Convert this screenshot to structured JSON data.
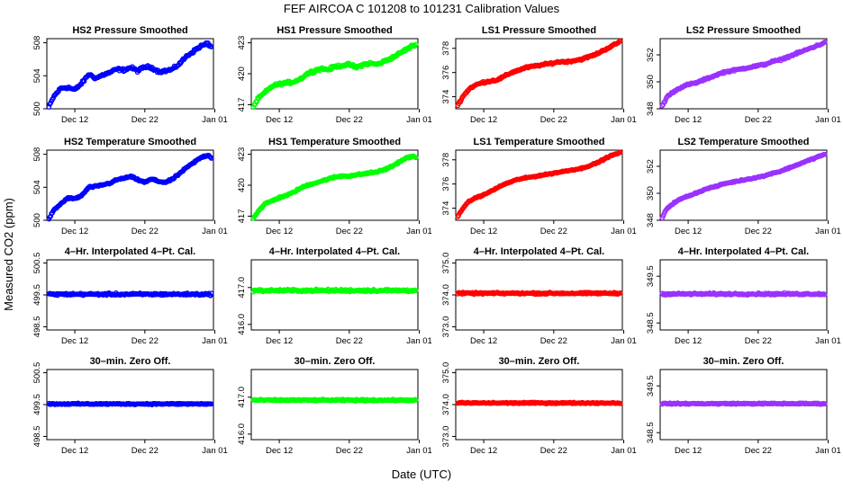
{
  "figure": {
    "title": "FEF    AIRCOA C    101208 to 101231    Calibration Values",
    "xlabel": "Date (UTC)",
    "ylabel": "Measured CO2 (ppm)",
    "x_tick_labels": [
      "Dec 12",
      "Dec 22",
      "Jan 01"
    ]
  },
  "chart_data": [
    {
      "type": "scatter",
      "row": 0,
      "col": 0,
      "title": "HS2 Pressure Smoothed",
      "color": "#0000ff",
      "xlim": [
        8.0,
        31.8
      ],
      "x_ticks": [
        12,
        22,
        32
      ],
      "x_tick_labels": [
        "Dec 12",
        "Dec 22",
        "Jan 01"
      ],
      "ylim": [
        500,
        508.5
      ],
      "y_ticks": [
        500,
        504,
        508
      ],
      "y_tick_labels": [
        "500",
        "504",
        "508"
      ],
      "knots_x": [
        8.3,
        9,
        10,
        11,
        12,
        13,
        14,
        15,
        16,
        17,
        18,
        19,
        20,
        21,
        22,
        23,
        24,
        25,
        26,
        27,
        28,
        29,
        30,
        31,
        31.5
      ],
      "knots_y": [
        500.2,
        501.5,
        502.5,
        502.6,
        502.3,
        503.1,
        504.2,
        503.7,
        504.1,
        504.4,
        504.8,
        504.7,
        505.0,
        504.6,
        505.1,
        505.0,
        504.5,
        504.6,
        504.8,
        505.5,
        506.4,
        507.0,
        507.6,
        507.9,
        507.5
      ],
      "noise": 0.25
    },
    {
      "type": "scatter",
      "row": 0,
      "col": 1,
      "title": "HS1 Pressure Smoothed",
      "color": "#00ff00",
      "xlim": [
        8.0,
        31.8
      ],
      "x_ticks": [
        12,
        22,
        32
      ],
      "x_tick_labels": [
        "Dec 12",
        "Dec 22",
        "Jan 01"
      ],
      "ylim": [
        416.6,
        423.4
      ],
      "y_ticks": [
        417,
        420,
        423
      ],
      "y_tick_labels": [
        "417",
        "420",
        "423"
      ],
      "knots_x": [
        8.3,
        9,
        10,
        11,
        12,
        13,
        14,
        15,
        16,
        17,
        18,
        19,
        20,
        21,
        22,
        23,
        24,
        25,
        26,
        27,
        28,
        29,
        30,
        31,
        31.5
      ],
      "knots_y": [
        416.8,
        417.6,
        418.2,
        418.8,
        419.0,
        419.1,
        419.2,
        419.5,
        420.0,
        420.3,
        420.5,
        420.4,
        420.7,
        420.8,
        420.9,
        420.6,
        420.9,
        421.0,
        420.9,
        421.2,
        421.5,
        421.9,
        422.3,
        422.7,
        422.8
      ],
      "noise": 0.2
    },
    {
      "type": "scatter",
      "row": 0,
      "col": 2,
      "title": "LS1 Pressure Smoothed",
      "color": "#ff0000",
      "xlim": [
        8.0,
        31.8
      ],
      "x_ticks": [
        12,
        22,
        32
      ],
      "x_tick_labels": [
        "Dec 12",
        "Dec 22",
        "Jan 01"
      ],
      "ylim": [
        373,
        378.8
      ],
      "y_ticks": [
        374,
        376,
        378
      ],
      "y_tick_labels": [
        "374",
        "376",
        "378"
      ],
      "knots_x": [
        8.3,
        9,
        10,
        11,
        12,
        13,
        14,
        15,
        16,
        17,
        18,
        19,
        20,
        21,
        22,
        23,
        24,
        25,
        26,
        27,
        28,
        29,
        30,
        31,
        31.5
      ],
      "knots_y": [
        373.3,
        374.0,
        374.7,
        375.0,
        375.2,
        375.3,
        375.4,
        375.7,
        376.0,
        376.2,
        376.4,
        376.5,
        376.6,
        376.7,
        376.8,
        376.9,
        376.9,
        377.0,
        377.1,
        377.3,
        377.5,
        377.8,
        378.1,
        378.4,
        378.6
      ],
      "noise": 0.12
    },
    {
      "type": "scatter",
      "row": 0,
      "col": 3,
      "title": "LS2 Pressure Smoothed",
      "color": "#9a32ff",
      "xlim": [
        8.0,
        31.8
      ],
      "x_ticks": [
        12,
        22,
        32
      ],
      "x_tick_labels": [
        "Dec 12",
        "Dec 22",
        "Jan 01"
      ],
      "ylim": [
        348,
        353.2
      ],
      "y_ticks": [
        348,
        350,
        352
      ],
      "y_tick_labels": [
        "348",
        "350",
        "352"
      ],
      "knots_x": [
        8.3,
        9,
        10,
        11,
        12,
        13,
        14,
        15,
        16,
        17,
        18,
        19,
        20,
        21,
        22,
        23,
        24,
        25,
        26,
        27,
        28,
        29,
        30,
        31,
        31.5
      ],
      "knots_y": [
        348.2,
        348.9,
        349.3,
        349.6,
        349.8,
        349.9,
        350.1,
        350.3,
        350.5,
        350.7,
        350.8,
        350.9,
        351.0,
        351.1,
        351.2,
        351.3,
        351.5,
        351.6,
        351.8,
        352.0,
        352.2,
        352.4,
        352.6,
        352.8,
        352.9
      ],
      "noise": 0.1
    },
    {
      "type": "scatter",
      "row": 1,
      "col": 0,
      "title": "HS2 Temperature Smoothed",
      "color": "#0000ff",
      "xlim": [
        8.0,
        31.8
      ],
      "x_ticks": [
        12,
        22,
        32
      ],
      "x_tick_labels": [
        "Dec 12",
        "Dec 22",
        "Jan 01"
      ],
      "ylim": [
        500,
        508.5
      ],
      "y_ticks": [
        500,
        504,
        508
      ],
      "y_tick_labels": [
        "500",
        "504",
        "508"
      ],
      "knots_x": [
        8.3,
        9,
        10,
        11,
        12,
        13,
        14,
        15,
        16,
        17,
        18,
        19,
        20,
        21,
        22,
        23,
        24,
        25,
        26,
        27,
        28,
        29,
        30,
        31,
        31.5
      ],
      "knots_y": [
        500.2,
        501.2,
        502.0,
        502.7,
        502.6,
        503.0,
        504.0,
        504.1,
        504.3,
        504.5,
        504.9,
        505.1,
        505.3,
        504.9,
        504.6,
        505.0,
        504.7,
        504.6,
        505.0,
        505.7,
        506.4,
        507.0,
        507.6,
        507.9,
        507.6
      ],
      "noise": 0.15
    },
    {
      "type": "scatter",
      "row": 1,
      "col": 1,
      "title": "HS1 Temperature Smoothed",
      "color": "#00ff00",
      "xlim": [
        8.0,
        31.8
      ],
      "x_ticks": [
        12,
        22,
        32
      ],
      "x_tick_labels": [
        "Dec 12",
        "Dec 22",
        "Jan 01"
      ],
      "ylim": [
        416.6,
        423.4
      ],
      "y_ticks": [
        417,
        420,
        423
      ],
      "y_tick_labels": [
        "417",
        "420",
        "423"
      ],
      "knots_x": [
        8.3,
        9,
        10,
        11,
        12,
        13,
        14,
        15,
        16,
        17,
        18,
        19,
        20,
        21,
        22,
        23,
        24,
        25,
        26,
        27,
        28,
        29,
        30,
        31,
        31.5
      ],
      "knots_y": [
        416.8,
        417.5,
        418.2,
        418.5,
        418.8,
        419.0,
        419.3,
        419.7,
        420.0,
        420.2,
        420.4,
        420.6,
        420.8,
        420.9,
        420.9,
        421.0,
        421.1,
        421.2,
        421.3,
        421.5,
        421.8,
        422.2,
        422.6,
        422.8,
        422.7
      ],
      "noise": 0.12
    },
    {
      "type": "scatter",
      "row": 1,
      "col": 2,
      "title": "LS1 Temperature Smoothed",
      "color": "#ff0000",
      "xlim": [
        8.0,
        31.8
      ],
      "x_ticks": [
        12,
        22,
        32
      ],
      "x_tick_labels": [
        "Dec 12",
        "Dec 22",
        "Jan 01"
      ],
      "ylim": [
        373,
        378.8
      ],
      "y_ticks": [
        374,
        376,
        378
      ],
      "y_tick_labels": [
        "374",
        "376",
        "378"
      ],
      "knots_x": [
        8.3,
        9,
        10,
        11,
        12,
        13,
        14,
        15,
        16,
        17,
        18,
        19,
        20,
        21,
        22,
        23,
        24,
        25,
        26,
        27,
        28,
        29,
        30,
        31,
        31.5
      ],
      "knots_y": [
        373.3,
        374.0,
        374.6,
        374.9,
        375.1,
        375.4,
        375.7,
        376.0,
        376.2,
        376.4,
        376.5,
        376.6,
        376.7,
        376.8,
        376.9,
        377.0,
        377.1,
        377.2,
        377.3,
        377.5,
        377.7,
        378.0,
        378.3,
        378.5,
        378.6
      ],
      "noise": 0.08
    },
    {
      "type": "scatter",
      "row": 1,
      "col": 3,
      "title": "LS2 Temperature Smoothed",
      "color": "#9a32ff",
      "xlim": [
        8.0,
        31.8
      ],
      "x_ticks": [
        12,
        22,
        32
      ],
      "x_tick_labels": [
        "Dec 12",
        "Dec 22",
        "Jan 01"
      ],
      "ylim": [
        348,
        353.2
      ],
      "y_ticks": [
        348,
        350,
        352
      ],
      "y_tick_labels": [
        "348",
        "350",
        "352"
      ],
      "knots_x": [
        8.3,
        9,
        10,
        11,
        12,
        13,
        14,
        15,
        16,
        17,
        18,
        19,
        20,
        21,
        22,
        23,
        24,
        25,
        26,
        27,
        28,
        29,
        30,
        31,
        31.5
      ],
      "knots_y": [
        348.2,
        348.9,
        349.3,
        349.6,
        349.8,
        350.0,
        350.2,
        350.4,
        350.5,
        350.7,
        350.8,
        350.9,
        351.0,
        351.1,
        351.2,
        351.3,
        351.5,
        351.6,
        351.8,
        352.0,
        352.2,
        352.4,
        352.6,
        352.8,
        352.9
      ],
      "noise": 0.07
    },
    {
      "type": "scatter",
      "row": 2,
      "col": 0,
      "title": "4–Hr. Interpolated 4–Pt. Cal.",
      "color": "#0000ff",
      "xlim": [
        8.0,
        31.8
      ],
      "x_ticks": [
        12,
        22,
        32
      ],
      "x_tick_labels": [
        "Dec 12",
        "Dec 22",
        "Jan 01"
      ],
      "ylim": [
        498.4,
        500.6
      ],
      "y_ticks": [
        498.5,
        499.5,
        500.5
      ],
      "y_tick_labels": [
        "498.5",
        "499.5",
        "500.5"
      ],
      "knots_x": [
        8.3,
        31.5
      ],
      "knots_y": [
        499.52,
        499.52
      ],
      "noise": 0.05
    },
    {
      "type": "scatter",
      "row": 2,
      "col": 1,
      "title": "4–Hr. Interpolated 4–Pt. Cal.",
      "color": "#00ff00",
      "xlim": [
        8.0,
        31.8
      ],
      "x_ticks": [
        12,
        22,
        32
      ],
      "x_tick_labels": [
        "Dec 12",
        "Dec 22",
        "Jan 01"
      ],
      "ylim": [
        415.85,
        417.75
      ],
      "y_ticks": [
        416.0,
        417.0
      ],
      "y_tick_labels": [
        "416.0",
        "417.0"
      ],
      "knots_x": [
        8.3,
        31.5
      ],
      "knots_y": [
        416.92,
        416.92
      ],
      "noise": 0.05
    },
    {
      "type": "scatter",
      "row": 2,
      "col": 2,
      "title": "4–Hr. Interpolated 4–Pt. Cal.",
      "color": "#ff0000",
      "xlim": [
        8.0,
        31.8
      ],
      "x_ticks": [
        12,
        22,
        32
      ],
      "x_tick_labels": [
        "Dec 12",
        "Dec 22",
        "Jan 01"
      ],
      "ylim": [
        372.9,
        375.1
      ],
      "y_ticks": [
        373.0,
        374.0,
        375.0
      ],
      "y_tick_labels": [
        "373.0",
        "374.0",
        "375.0"
      ],
      "knots_x": [
        8.3,
        31.5
      ],
      "knots_y": [
        374.05,
        374.05
      ],
      "noise": 0.04
    },
    {
      "type": "scatter",
      "row": 2,
      "col": 3,
      "title": "4–Hr. Interpolated 4–Pt. Cal.",
      "color": "#9a32ff",
      "xlim": [
        8.0,
        31.8
      ],
      "x_ticks": [
        12,
        22,
        32
      ],
      "x_tick_labels": [
        "Dec 12",
        "Dec 22",
        "Jan 01"
      ],
      "ylim": [
        348.35,
        349.85
      ],
      "y_ticks": [
        348.5,
        349.5
      ],
      "y_tick_labels": [
        "348.5",
        "349.5"
      ],
      "knots_x": [
        8.3,
        31.5
      ],
      "knots_y": [
        349.12,
        349.12
      ],
      "noise": 0.03
    },
    {
      "type": "scatter",
      "row": 3,
      "col": 0,
      "title": "30–min. Zero Off.",
      "color": "#0000ff",
      "xlim": [
        8.0,
        31.8
      ],
      "x_ticks": [
        12,
        22,
        32
      ],
      "x_tick_labels": [
        "Dec 12",
        "Dec 22",
        "Jan 01"
      ],
      "ylim": [
        498.4,
        500.6
      ],
      "y_ticks": [
        498.5,
        499.5,
        500.5
      ],
      "y_tick_labels": [
        "498.5",
        "499.5",
        "500.5"
      ],
      "knots_x": [
        8.3,
        31.5
      ],
      "knots_y": [
        499.52,
        499.52
      ],
      "noise": 0.03
    },
    {
      "type": "scatter",
      "row": 3,
      "col": 1,
      "title": "30–min. Zero Off.",
      "color": "#00ff00",
      "xlim": [
        8.0,
        31.8
      ],
      "x_ticks": [
        12,
        22,
        32
      ],
      "x_tick_labels": [
        "Dec 12",
        "Dec 22",
        "Jan 01"
      ],
      "ylim": [
        415.85,
        417.75
      ],
      "y_ticks": [
        416.0,
        417.0
      ],
      "y_tick_labels": [
        "416.0",
        "417.0"
      ],
      "knots_x": [
        8.3,
        31.5
      ],
      "knots_y": [
        416.92,
        416.92
      ],
      "noise": 0.03
    },
    {
      "type": "scatter",
      "row": 3,
      "col": 2,
      "title": "30–min. Zero Off.",
      "color": "#ff0000",
      "xlim": [
        8.0,
        31.8
      ],
      "x_ticks": [
        12,
        22,
        32
      ],
      "x_tick_labels": [
        "Dec 12",
        "Dec 22",
        "Jan 01"
      ],
      "ylim": [
        372.9,
        375.1
      ],
      "y_ticks": [
        373.0,
        374.0,
        375.0
      ],
      "y_tick_labels": [
        "373.0",
        "374.0",
        "375.0"
      ],
      "knots_x": [
        8.3,
        31.5
      ],
      "knots_y": [
        374.05,
        374.05
      ],
      "noise": 0.03
    },
    {
      "type": "scatter",
      "row": 3,
      "col": 3,
      "title": "30–min. Zero Off.",
      "color": "#9a32ff",
      "xlim": [
        8.0,
        31.8
      ],
      "x_ticks": [
        12,
        22,
        32
      ],
      "x_tick_labels": [
        "Dec 12",
        "Dec 22",
        "Jan 01"
      ],
      "ylim": [
        348.35,
        349.85
      ],
      "y_ticks": [
        348.5,
        349.5
      ],
      "y_tick_labels": [
        "348.5",
        "349.5"
      ],
      "knots_x": [
        8.3,
        31.5
      ],
      "knots_y": [
        349.12,
        349.12
      ],
      "noise": 0.02
    }
  ]
}
